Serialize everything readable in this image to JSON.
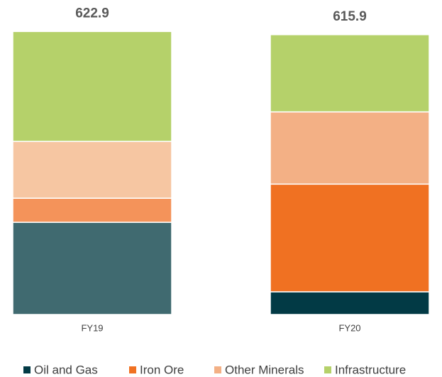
{
  "chart_data": {
    "type": "stacked_bar",
    "categories": [
      "FY19",
      "FY20"
    ],
    "totals": [
      622.9,
      615.9
    ],
    "series": [
      {
        "name": "Oil and Gas",
        "color": "#023a45",
        "point_colors": [
          "#406a70",
          "#023a45"
        ],
        "values": [
          203,
          50
        ]
      },
      {
        "name": "Iron Ore",
        "color": "#f07122",
        "point_colors": [
          "#f4935a",
          "#f07122"
        ],
        "values": [
          53,
          237
        ]
      },
      {
        "name": "Other Minerals",
        "color": "#f3b085",
        "point_colors": [
          "#f6c6a2",
          "#f3b085"
        ],
        "values": [
          125,
          159
        ]
      },
      {
        "name": "Infrastructure",
        "color": "#b5d16a",
        "point_colors": [
          "#b5d16a",
          "#b5d16a"
        ],
        "values": [
          241.9,
          169.9
        ]
      }
    ],
    "ylim": [
      0,
      650
    ]
  }
}
